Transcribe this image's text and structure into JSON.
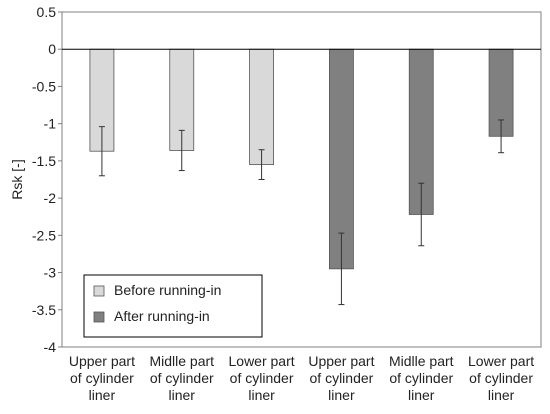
{
  "chart_data": {
    "type": "bar",
    "title": "",
    "xlabel": "",
    "ylabel": "Rsk [-]",
    "ylim": [
      -4,
      0.5
    ],
    "yticks": [
      0.5,
      0,
      -0.5,
      -1,
      -1.5,
      -2,
      -2.5,
      -3,
      -3.5,
      -4
    ],
    "ytick_labels": [
      "0.5",
      "0",
      "-0.5",
      "-1",
      "-1.5",
      "-2",
      "-2.5",
      "-3",
      "-3.5",
      "-4"
    ],
    "grid": false,
    "legend_position": "bottom-left",
    "categories": [
      [
        "Upper part",
        "of cylinder",
        "liner"
      ],
      [
        "Midlle part",
        "of cylinder",
        "liner"
      ],
      [
        "Lower part",
        "of cylinder",
        "liner"
      ],
      [
        "Upper part",
        "of cylinder",
        "liner"
      ],
      [
        "Midlle part",
        "of cylinder",
        "liner"
      ],
      [
        "Lower part",
        "of cylinder",
        "liner"
      ]
    ],
    "series": [
      {
        "name": "Before running-in",
        "color": "#d9d9d9",
        "values": [
          -1.37,
          -1.36,
          -1.55,
          null,
          null,
          null
        ],
        "error": [
          0.33,
          0.27,
          0.2,
          null,
          null,
          null
        ]
      },
      {
        "name": "After running-in",
        "color": "#808080",
        "values": [
          null,
          null,
          null,
          -2.95,
          -2.22,
          -1.17
        ],
        "error": [
          null,
          null,
          null,
          0.48,
          0.42,
          0.22
        ]
      }
    ]
  }
}
